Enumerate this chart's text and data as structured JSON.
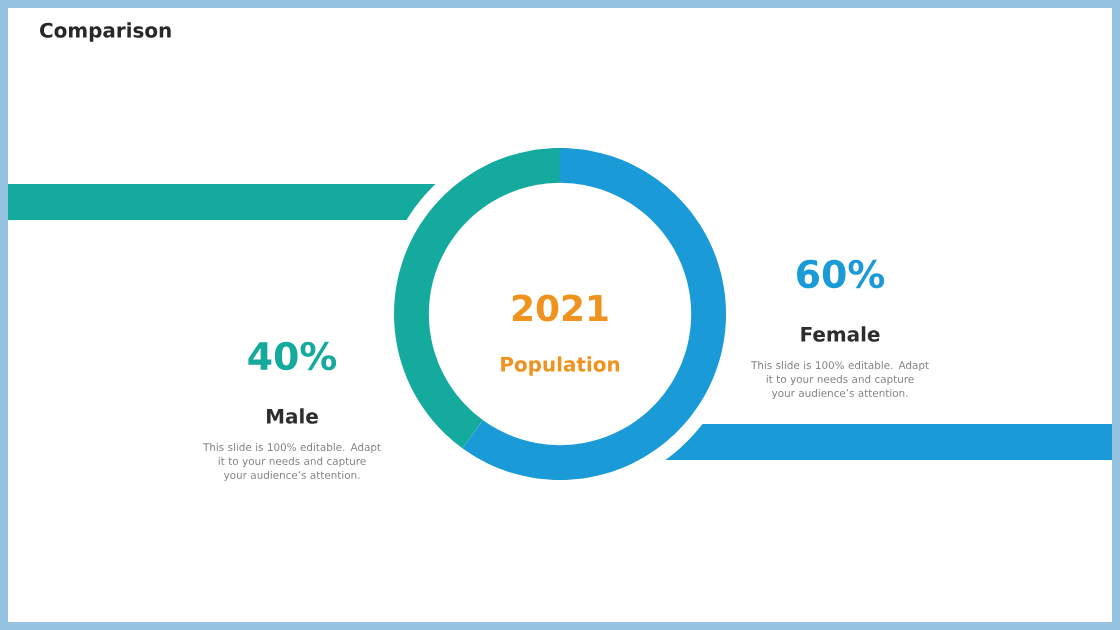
{
  "chart_data": {
    "type": "donut",
    "title": "Comparison",
    "categories": [
      "Male",
      "Female"
    ],
    "values": [
      40,
      60
    ],
    "colors": [
      "#14aa9e",
      "#1b9ad8"
    ],
    "value_labels": [
      "40%",
      "60%"
    ],
    "annotations": [
      "2021",
      "Population",
      "This slide is 100% editable. Adapt it to your needs and capture your audience’s attention.",
      "This slide is 100% editable. Adapt it to your needs and capture your audience’s attention."
    ]
  }
}
